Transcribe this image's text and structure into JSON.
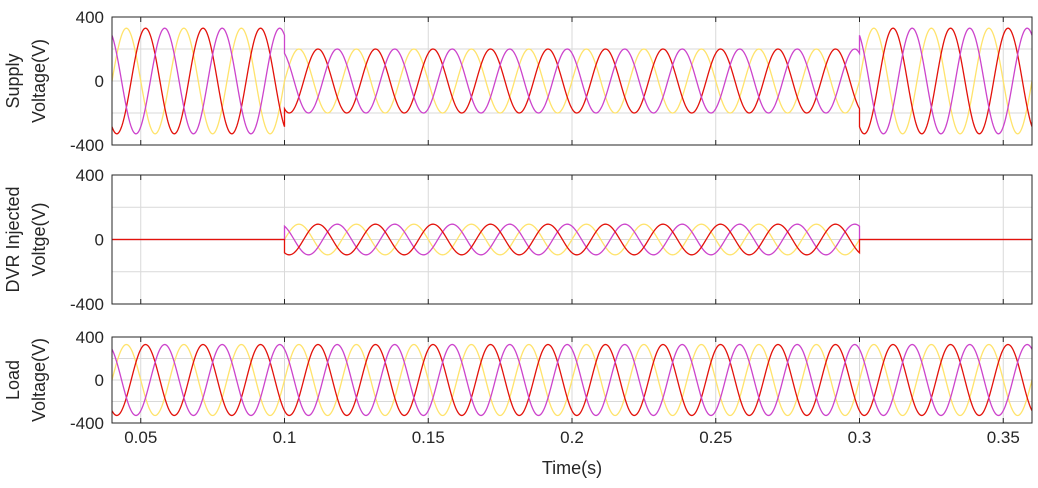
{
  "chart_data": [
    {
      "type": "line",
      "ylabel": [
        "Supply",
        "Voltage(V)"
      ],
      "xlim": [
        0.04,
        0.36
      ],
      "ylim": [
        -400,
        400
      ],
      "yticks": [
        -400,
        0,
        400
      ],
      "ytick_labels": [
        "-400",
        "0",
        "400"
      ],
      "grid": true,
      "series": [
        {
          "color": "#ffe36b",
          "phase_deg": 0,
          "segments": [
            {
              "from": 0.04,
              "to": 0.1,
              "amplitude": 330
            },
            {
              "from": 0.1,
              "to": 0.3,
              "amplitude": 200
            },
            {
              "from": 0.3,
              "to": 0.36,
              "amplitude": 330
            }
          ]
        },
        {
          "color": "#e3120b",
          "phase_deg": -120,
          "segments": [
            {
              "from": 0.04,
              "to": 0.1,
              "amplitude": 330
            },
            {
              "from": 0.1,
              "to": 0.3,
              "amplitude": 200
            },
            {
              "from": 0.3,
              "to": 0.36,
              "amplitude": 330
            }
          ]
        },
        {
          "color": "#cc44cc",
          "phase_deg": 120,
          "segments": [
            {
              "from": 0.04,
              "to": 0.1,
              "amplitude": 330
            },
            {
              "from": 0.1,
              "to": 0.3,
              "amplitude": 200
            },
            {
              "from": 0.3,
              "to": 0.36,
              "amplitude": 330
            }
          ]
        }
      ]
    },
    {
      "type": "line",
      "ylabel": [
        "DVR Injected",
        "Voltge(V)"
      ],
      "xlim": [
        0.04,
        0.36
      ],
      "ylim": [
        -400,
        400
      ],
      "yticks": [
        -400,
        0,
        400
      ],
      "ytick_labels": [
        "-400",
        "0",
        "400"
      ],
      "grid": true,
      "series": [
        {
          "color": "#ffe36b",
          "phase_deg": 0,
          "segments": [
            {
              "from": 0.04,
              "to": 0.1,
              "amplitude": 0
            },
            {
              "from": 0.1,
              "to": 0.3,
              "amplitude": 95
            },
            {
              "from": 0.3,
              "to": 0.36,
              "amplitude": 0
            }
          ]
        },
        {
          "color": "#cc44cc",
          "phase_deg": 120,
          "segments": [
            {
              "from": 0.04,
              "to": 0.1,
              "amplitude": 0
            },
            {
              "from": 0.1,
              "to": 0.3,
              "amplitude": 95
            },
            {
              "from": 0.3,
              "to": 0.36,
              "amplitude": 0
            }
          ]
        },
        {
          "color": "#e3120b",
          "phase_deg": -120,
          "segments": [
            {
              "from": 0.04,
              "to": 0.1,
              "amplitude": 0
            },
            {
              "from": 0.1,
              "to": 0.3,
              "amplitude": 95
            },
            {
              "from": 0.3,
              "to": 0.36,
              "amplitude": 0
            }
          ]
        }
      ]
    },
    {
      "type": "line",
      "ylabel": [
        "Load",
        "Voltage(V)"
      ],
      "xlabel": "Time(s)",
      "xlim": [
        0.04,
        0.36
      ],
      "ylim": [
        -400,
        400
      ],
      "yticks": [
        -400,
        0,
        400
      ],
      "ytick_labels": [
        "-400",
        "0",
        "400"
      ],
      "xticks": [
        0.05,
        0.1,
        0.15,
        0.2,
        0.25,
        0.3,
        0.35
      ],
      "xtick_labels": [
        "0.05",
        "0.1",
        "0.15",
        "0.2",
        "0.25",
        "0.3",
        "0.35"
      ],
      "grid": true,
      "series": [
        {
          "color": "#ffe36b",
          "phase_deg": 0,
          "segments": [
            {
              "from": 0.04,
              "to": 0.36,
              "amplitude": 330
            }
          ]
        },
        {
          "color": "#e3120b",
          "phase_deg": -120,
          "segments": [
            {
              "from": 0.04,
              "to": 0.36,
              "amplitude": 330
            }
          ]
        },
        {
          "color": "#cc44cc",
          "phase_deg": 120,
          "segments": [
            {
              "from": 0.04,
              "to": 0.36,
              "amplitude": 330
            }
          ]
        }
      ]
    }
  ],
  "signal": {
    "frequency_hz": 50
  }
}
